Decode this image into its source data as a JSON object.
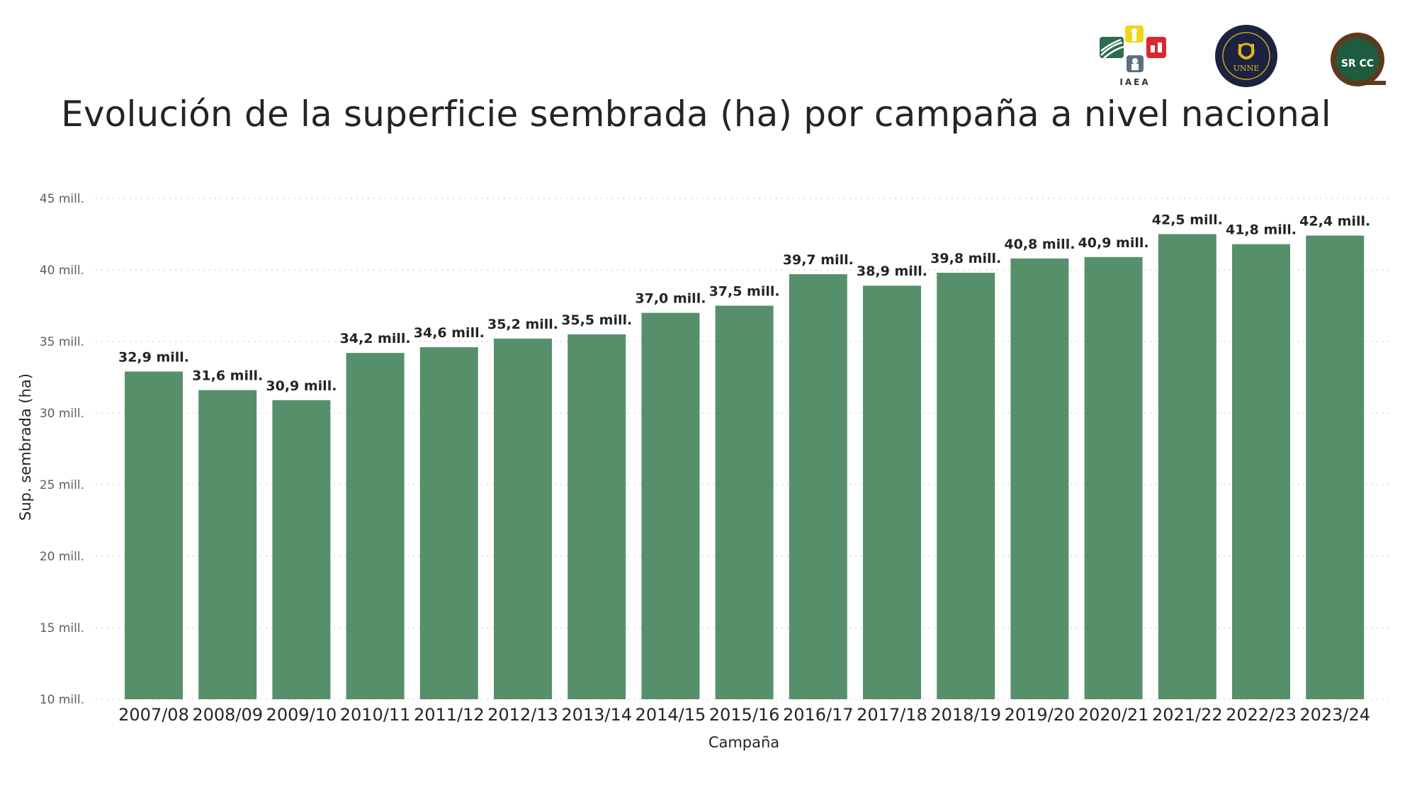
{
  "chart_data": {
    "type": "bar",
    "title": "Evolución de la superficie sembrada (ha) por campaña a nivel nacional",
    "xlabel": "Campaña",
    "ylabel": "Sup. sembrada (ha)",
    "ylim": [
      10,
      45
    ],
    "yticks": [
      10,
      15,
      20,
      25,
      30,
      35,
      40,
      45
    ],
    "ytick_labels": [
      "10 mill.",
      "15 mill.",
      "20 mill.",
      "25 mill.",
      "30 mill.",
      "35 mill.",
      "40 mill.",
      "45 mill."
    ],
    "grid": true,
    "categories": [
      "2007/08",
      "2008/09",
      "2009/10",
      "2010/11",
      "2011/12",
      "2012/13",
      "2013/14",
      "2014/15",
      "2015/16",
      "2016/17",
      "2017/18",
      "2018/19",
      "2019/20",
      "2020/21",
      "2021/22",
      "2022/23",
      "2023/24"
    ],
    "values": [
      32.9,
      31.6,
      30.9,
      34.2,
      34.6,
      35.2,
      35.5,
      37.0,
      37.5,
      39.7,
      38.9,
      39.8,
      40.8,
      40.9,
      42.5,
      41.8,
      42.4
    ],
    "data_labels": [
      "32,9 mill.",
      "31,6 mill.",
      "30,9 mill.",
      "34,2 mill.",
      "34,6 mill.",
      "35,2 mill.",
      "35,5 mill.",
      "37,0 mill.",
      "37,5 mill.",
      "39,7 mill.",
      "38,9 mill.",
      "39,8 mill.",
      "40,8 mill.",
      "40,9 mill.",
      "42,5 mill.",
      "41,8 mill.",
      "42,4 mill."
    ],
    "bar_color": "#56906b"
  },
  "logos": {
    "iaea_text": "IAEA",
    "unne_text": "UNNE",
    "srcc_text": "SR CC"
  }
}
